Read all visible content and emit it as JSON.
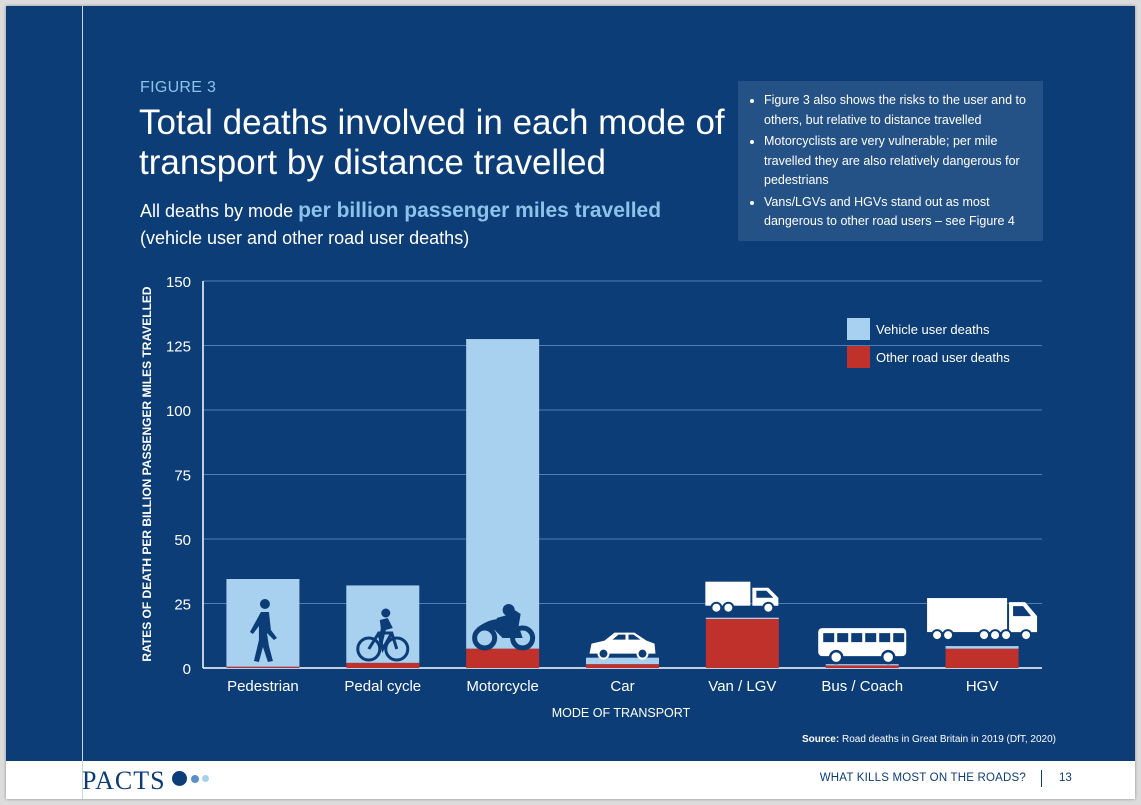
{
  "figure_label": "FIGURE 3",
  "title": "Total deaths involved in each mode of transport by distance travelled",
  "subtitle": {
    "prefix": "All deaths by mode ",
    "highlight": "per billion passenger miles travelled",
    "line2": "(vehicle user and other road user deaths)"
  },
  "notes": [
    "Figure 3 also shows the risks to the user and to others, but relative to distance travelled",
    "Motorcyclists are very vulnerable; per mile travelled they are also relatively dangerous for pedestrians",
    "Vans/LGVs and HGVs stand out as most dangerous to other road users – see Figure 4"
  ],
  "source": {
    "label": "Source:",
    "text": " Road deaths in Great Britain in 2019 (DfT, 2020)"
  },
  "footer": {
    "logo": "PACTS",
    "text": "WHAT KILLS MOST ON THE ROADS?",
    "page": "13"
  },
  "colors": {
    "background": "#0c3d77",
    "vehicle_user": "#a8d0ef",
    "other_user": "#c0312b",
    "accent_text": "#8dc3ea"
  },
  "chart_data": {
    "type": "bar",
    "stacked": true,
    "title": "Total deaths involved in each mode of transport by distance travelled",
    "xlabel": "MODE OF TRANSPORT",
    "ylabel": "RATES OF DEATH PER BILLION PASSENGER MILES TRAVELLED",
    "ylim": [
      0,
      150
    ],
    "yticks": [
      0,
      25,
      50,
      75,
      100,
      125,
      150
    ],
    "categories": [
      "Pedestrian",
      "Pedal cycle",
      "Motorcycle",
      "Car",
      "Van / LGV",
      "Bus / Coach",
      "HGV"
    ],
    "icons": [
      "pedestrian-icon",
      "bicycle-icon",
      "motorcycle-icon",
      "car-icon",
      "van-icon",
      "bus-icon",
      "hgv-icon"
    ],
    "series": [
      {
        "name": "Other road user deaths",
        "values": [
          0.5,
          2,
          7.5,
          1.5,
          19,
          1,
          7.5
        ]
      },
      {
        "name": "Vehicle user deaths",
        "values": [
          34,
          30,
          120,
          2.5,
          0.5,
          0.5,
          1
        ]
      }
    ],
    "legend": [
      "Vehicle user deaths",
      "Other road user deaths"
    ],
    "legend_position": "top-right",
    "grid": true
  }
}
